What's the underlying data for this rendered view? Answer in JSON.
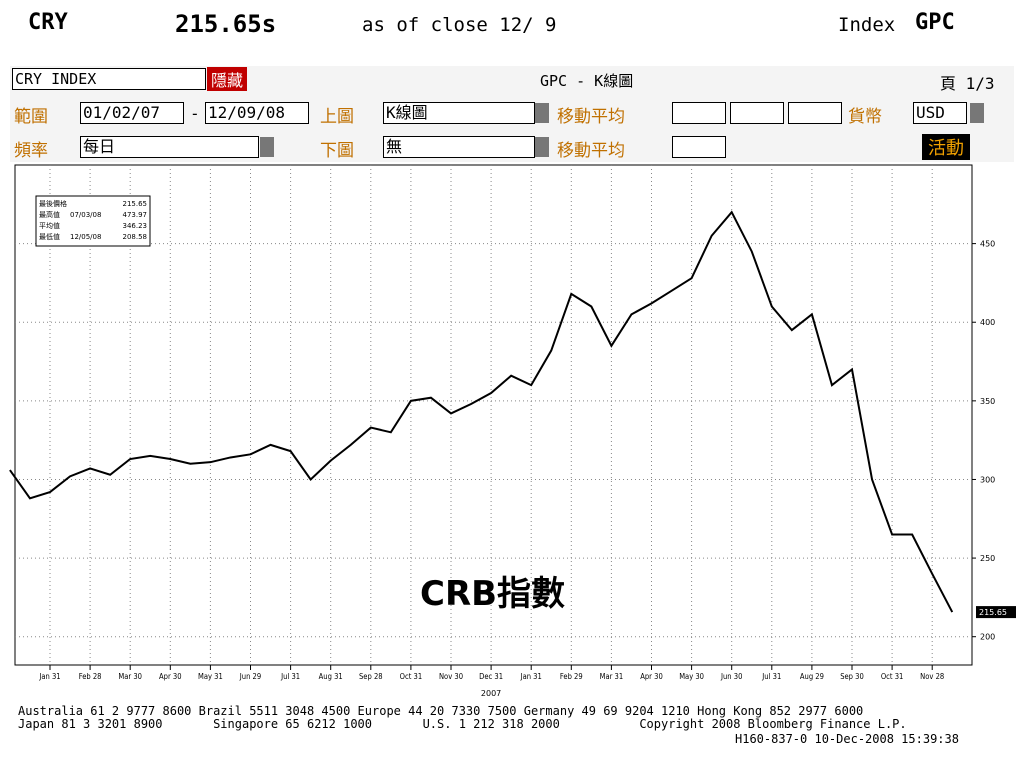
{
  "header": {
    "ticker": "CRY",
    "price": "215.65s",
    "as_of": "as of close 12/ 9",
    "index_word": "Index",
    "index_code": "GPC"
  },
  "toolbar": {
    "security": "CRY INDEX",
    "hide": "隱藏",
    "chart_title": "GPC - K線圖",
    "page": "頁 1/3",
    "range_label": "範圍",
    "start": "01/02/07",
    "dash": "-",
    "end": "12/09/08",
    "upper_label": "上圖",
    "upper_value": "K線圖",
    "ma_label_1": "移動平均",
    "currency_label": "貨幣",
    "currency": "USD",
    "freq_label": "頻率",
    "freq": "每日",
    "lower_label": "下圖",
    "lower_value": "無",
    "ma_label_2": "移動平均",
    "action": "活動"
  },
  "legend_box": [
    {
      "label": "最後價格",
      "date": "",
      "value": "215.65"
    },
    {
      "label": "最高值",
      "date": "07/03/08",
      "value": "473.97"
    },
    {
      "label": "平均值",
      "date": "",
      "value": "346.23"
    },
    {
      "label": "最低值",
      "date": "12/05/08",
      "value": "208.58"
    }
  ],
  "chart_data": {
    "type": "line",
    "annotation": "CRB指數",
    "year_label": "2007",
    "categories": [
      null,
      null,
      "Jan 31",
      null,
      "Feb 28",
      null,
      "Mar 30",
      null,
      "Apr 30",
      null,
      "May 31",
      null,
      "Jun 29",
      null,
      "Jul 31",
      null,
      "Aug 31",
      null,
      "Sep 28",
      null,
      "Oct 31",
      null,
      "Nov 30",
      null,
      "Dec 31",
      null,
      "Jan 31",
      null,
      "Feb 29",
      null,
      "Mar 31",
      null,
      "Apr 30",
      null,
      "May 30",
      null,
      "Jun 30",
      null,
      "Jul 31",
      null,
      "Aug 29",
      null,
      "Sep 30",
      null,
      "Oct 31",
      null,
      "Nov 28",
      null
    ],
    "values": [
      306,
      288,
      292,
      302,
      307,
      303,
      313,
      315,
      313,
      310,
      311,
      314,
      316,
      322,
      318,
      300,
      312,
      322,
      333,
      330,
      350,
      352,
      342,
      348,
      355,
      366,
      360,
      382,
      418,
      410,
      385,
      405,
      412,
      420,
      428,
      455,
      470,
      445,
      410,
      395,
      405,
      360,
      370,
      300,
      265,
      265,
      240,
      215.65
    ],
    "color": "#000000",
    "ylim": [
      182,
      500
    ],
    "yticks": [
      200,
      250,
      300,
      350,
      400,
      450
    ],
    "grid": true
  },
  "footer": [
    "Australia 61 2 9777 8600 Brazil 5511 3048 4500 Europe 44 20 7330 7500 Germany 49 69 9204 1210 Hong Kong 852 2977 6000",
    "Japan 81 3 3201 8900       Singapore 65 6212 1000       U.S. 1 212 318 2000           Copyright 2008 Bloomberg Finance L.P.",
    "H160-837-0 10-Dec-2008 15:39:38"
  ]
}
